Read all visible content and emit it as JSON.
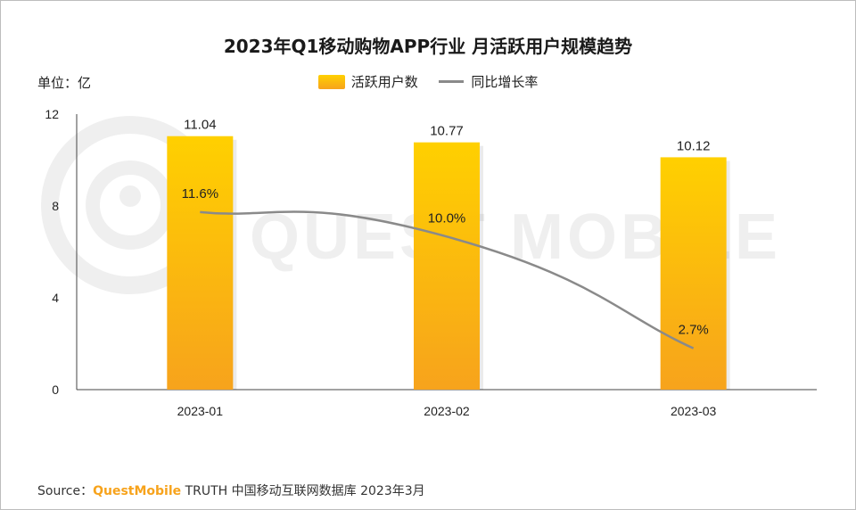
{
  "chart_data": {
    "type": "bar",
    "title": "2023年Q1移动购物APP行业 月活跃用户规模趋势",
    "unit_label": "单位：亿",
    "categories": [
      "2023-01",
      "2023-02",
      "2023-03"
    ],
    "series": [
      {
        "name": "活跃用户数",
        "type": "bar",
        "axis": "left",
        "values": [
          11.04,
          10.77,
          10.12
        ],
        "labels": [
          "11.04",
          "10.77",
          "10.12"
        ],
        "color": "#ffc20e"
      },
      {
        "name": "同比增长率",
        "type": "line",
        "axis": "right",
        "values": [
          11.6,
          10.0,
          2.7
        ],
        "labels": [
          "11.6%",
          "10.0%",
          "2.7%"
        ],
        "color": "#8a8a8a"
      }
    ],
    "yticks": [
      "0",
      "4",
      "8",
      "12"
    ],
    "ylim": [
      0,
      12
    ],
    "y2lim": [
      0,
      18
    ],
    "legend_position": "top-center",
    "grid": false
  },
  "watermark": "QUEST MOBILE",
  "source": {
    "prefix": "Source：",
    "brand": "QuestMobile",
    "text": " TRUTH 中国移动互联网数据库 2023年3月"
  }
}
